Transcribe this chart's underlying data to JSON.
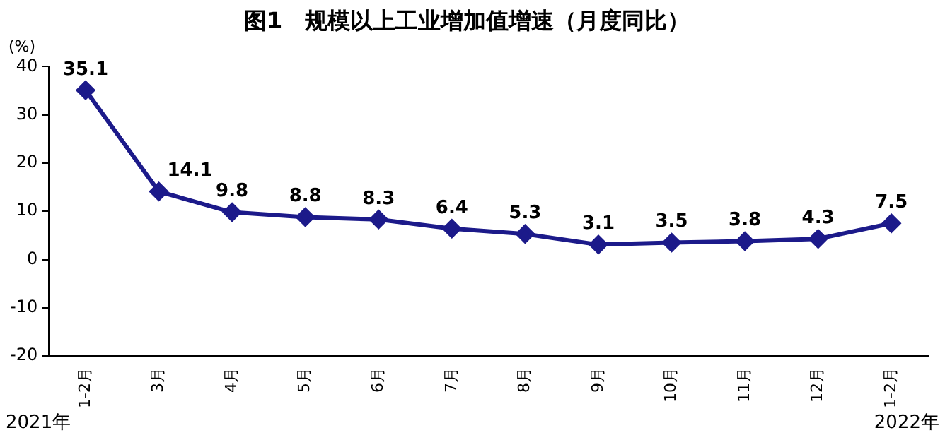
{
  "chart_data": {
    "type": "line",
    "title": "图1　规模以上工业增加值增速（月度同比）",
    "ylabel": "(%)",
    "categories": [
      "1-2月",
      "3月",
      "4月",
      "5月",
      "6月",
      "7月",
      "8月",
      "9月",
      "10月",
      "11月",
      "12月",
      "1-2月"
    ],
    "series": [
      {
        "color": "#1c1a8a",
        "values": [
          35.1,
          14.1,
          9.8,
          8.8,
          8.3,
          6.4,
          5.3,
          3.1,
          3.5,
          3.8,
          4.3,
          7.5
        ]
      }
    ],
    "ylim": [
      -20,
      40
    ],
    "yticks": [
      -20,
      -10,
      0,
      10,
      20,
      30,
      40
    ],
    "grid": false,
    "legend": false,
    "marker": "diamond",
    "line_style": "solid",
    "data_labels": true,
    "annotations": [
      "2021年",
      "2022年"
    ]
  }
}
